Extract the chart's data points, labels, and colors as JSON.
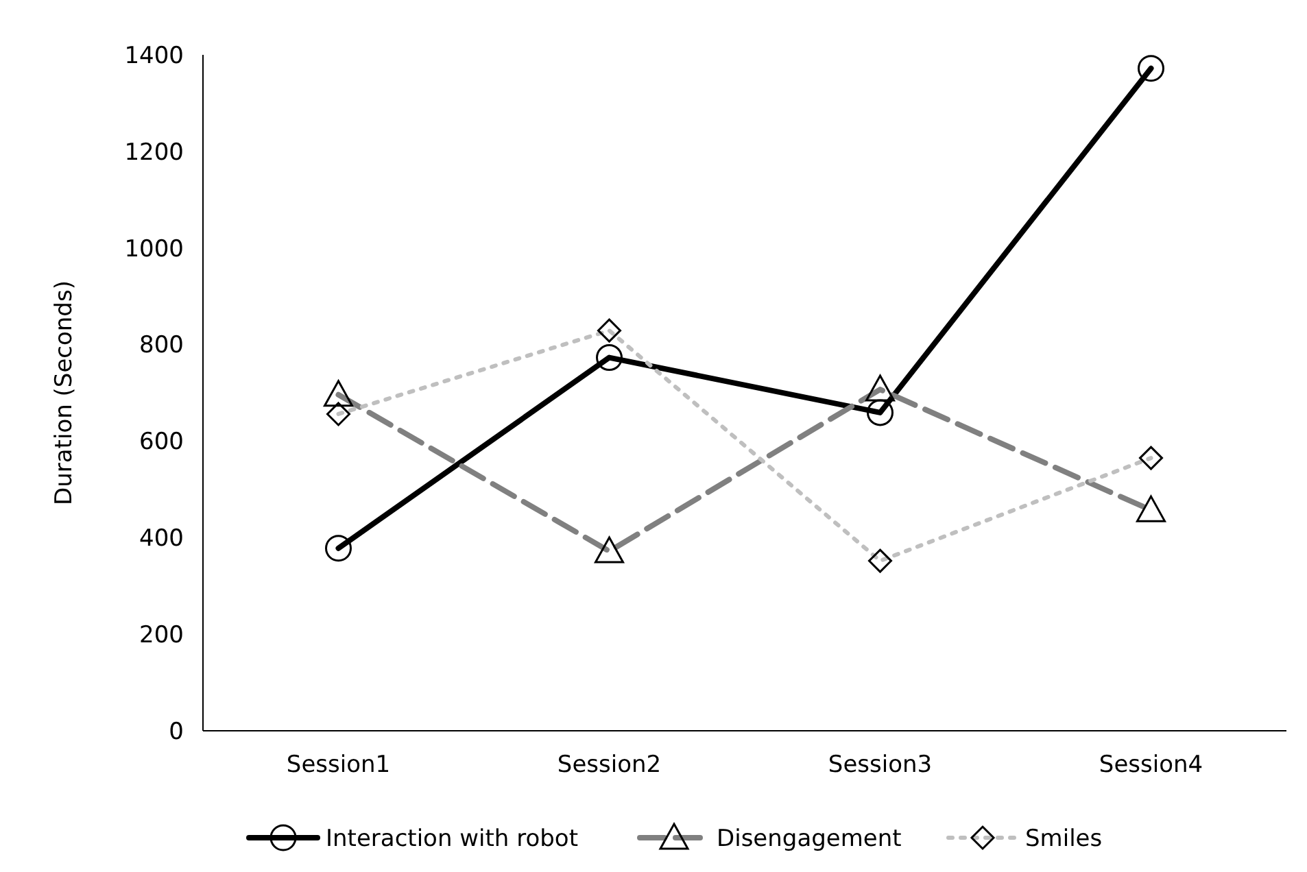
{
  "chart_data": {
    "type": "line",
    "ylabel": "Duration (Seconds)",
    "categories": [
      "Session1",
      "Session2",
      "Session3",
      "Session4"
    ],
    "series": [
      {
        "name": "Interaction with robot",
        "color": "#000000",
        "values": [
          378,
          773,
          659,
          1372
        ],
        "marker": "circle",
        "line_style": "solid"
      },
      {
        "name": "Disengagement",
        "color": "#808080",
        "values": [
          696,
          372,
          707,
          457
        ],
        "marker": "triangle",
        "line_style": "dashed"
      },
      {
        "name": "Smiles",
        "color": "#bfbfbf",
        "values": [
          656,
          829,
          352,
          565
        ],
        "marker": "diamond",
        "line_style": "dotted"
      }
    ],
    "ylim": [
      0,
      1400
    ],
    "yticks": [
      0,
      200,
      400,
      600,
      800,
      1000,
      1200,
      1400
    ],
    "grid": false,
    "legend": "bottom"
  }
}
